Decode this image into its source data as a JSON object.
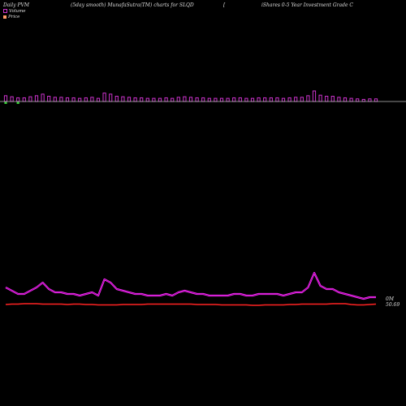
{
  "header": {
    "left": "Daily PVM",
    "center": "(5day smooth) MunafaSutra(TM) charts for SLQD",
    "right_a": "[",
    "right_b": "iShares 0-5 Year Investment Grade  C"
  },
  "legend": {
    "volume": "Volume",
    "price": "Price"
  },
  "colors": {
    "background": "#000000",
    "volume_bar": "#cc33cc",
    "volume_bar_down": "#33cc33",
    "baseline": "#bbbbbb",
    "volume_line_outer": "#ff33ff",
    "volume_line_inner": "#990099",
    "price_line": "#ff2222"
  },
  "chart_data": {
    "type": "bar",
    "title": "(5day smooth) MunafaSutra(TM) charts for SLQD",
    "series": [
      {
        "name": "Volume",
        "values": [
          0.55,
          0.45,
          0.35,
          0.35,
          0.45,
          0.55,
          0.7,
          0.5,
          0.4,
          0.4,
          0.35,
          0.35,
          0.3,
          0.35,
          0.4,
          0.3,
          0.8,
          0.7,
          0.5,
          0.45,
          0.4,
          0.35,
          0.35,
          0.3,
          0.3,
          0.3,
          0.35,
          0.3,
          0.4,
          0.45,
          0.4,
          0.35,
          0.35,
          0.3,
          0.3,
          0.3,
          0.3,
          0.35,
          0.35,
          0.3,
          0.3,
          0.35,
          0.35,
          0.35,
          0.35,
          0.3,
          0.35,
          0.4,
          0.4,
          0.55,
          1.0,
          0.6,
          0.5,
          0.5,
          0.4,
          0.35,
          0.3,
          0.25,
          0.2,
          0.25,
          0.25
        ]
      },
      {
        "name": "Price",
        "values": [
          50.68,
          50.69,
          50.69,
          50.7,
          50.7,
          50.7,
          50.69,
          50.69,
          50.69,
          50.69,
          50.68,
          50.69,
          50.69,
          50.68,
          50.68,
          50.67,
          50.67,
          50.67,
          50.67,
          50.68,
          50.68,
          50.68,
          50.68,
          50.69,
          50.69,
          50.69,
          50.69,
          50.69,
          50.69,
          50.69,
          50.69,
          50.68,
          50.68,
          50.68,
          50.68,
          50.67,
          50.67,
          50.67,
          50.67,
          50.67,
          50.66,
          50.66,
          50.67,
          50.67,
          50.67,
          50.67,
          50.68,
          50.68,
          50.69,
          50.69,
          50.69,
          50.69,
          50.69,
          50.7,
          50.7,
          50.7,
          50.68,
          50.67,
          50.67,
          50.68,
          50.69
        ]
      }
    ],
    "down_bar_indices": [
      0,
      2
    ],
    "price_label": "50.69",
    "volume_label": "0M",
    "ylabel": ""
  }
}
